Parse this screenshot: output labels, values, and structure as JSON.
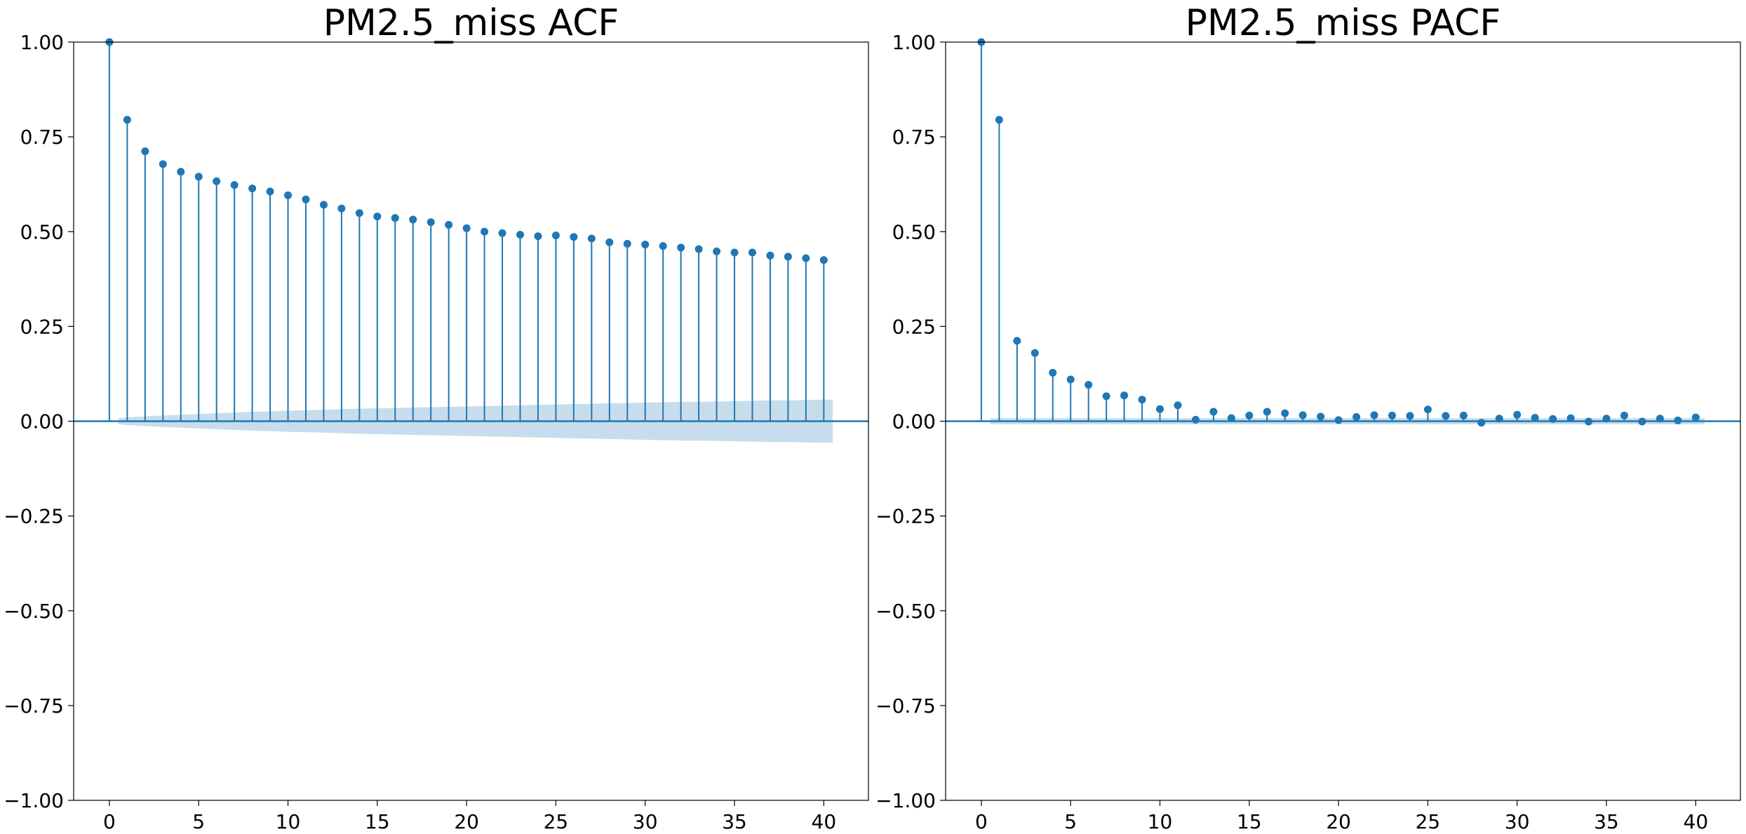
{
  "colors": {
    "stem": "#1f77b4",
    "marker": "#1f77b4",
    "baseline": "#1f77b4",
    "confidence_band": "#1f77b4",
    "frame": "#000000"
  },
  "chart_data": [
    {
      "type": "stem",
      "title": "PM2.5_miss ACF",
      "xlabel": "",
      "ylabel": "",
      "xlim": [
        -2,
        42.5
      ],
      "ylim": [
        -1.0,
        1.0
      ],
      "xticks": [
        0,
        5,
        10,
        15,
        20,
        25,
        30,
        35,
        40
      ],
      "xtick_labels": [
        "0",
        "5",
        "10",
        "15",
        "20",
        "25",
        "30",
        "35",
        "40"
      ],
      "yticks": [
        -1.0,
        -0.75,
        -0.5,
        -0.25,
        0.0,
        0.25,
        0.5,
        0.75,
        1.0
      ],
      "ytick_labels": [
        "−1.00",
        "−0.75",
        "−0.50",
        "−0.25",
        "0.00",
        "0.25",
        "0.50",
        "0.75",
        "1.00"
      ],
      "grid": false,
      "lags": [
        0,
        1,
        2,
        3,
        4,
        5,
        6,
        7,
        8,
        9,
        10,
        11,
        12,
        13,
        14,
        15,
        16,
        17,
        18,
        19,
        20,
        21,
        22,
        23,
        24,
        25,
        26,
        27,
        28,
        29,
        30,
        31,
        32,
        33,
        34,
        35,
        36,
        37,
        38,
        39,
        40
      ],
      "values": [
        1.0,
        0.795,
        0.712,
        0.678,
        0.658,
        0.645,
        0.633,
        0.623,
        0.614,
        0.606,
        0.596,
        0.585,
        0.571,
        0.561,
        0.549,
        0.54,
        0.536,
        0.532,
        0.525,
        0.518,
        0.509,
        0.5,
        0.496,
        0.492,
        0.488,
        0.49,
        0.486,
        0.482,
        0.472,
        0.468,
        0.466,
        0.462,
        0.458,
        0.454,
        0.448,
        0.445,
        0.445,
        0.437,
        0.434,
        0.43,
        0.425
      ],
      "confidence_band": {
        "lags": [
          0.5,
          1,
          2,
          3,
          4,
          5,
          6,
          7,
          8,
          9,
          10,
          11,
          12,
          13,
          14,
          15,
          16,
          17,
          18,
          19,
          20,
          21,
          22,
          23,
          24,
          25,
          26,
          27,
          28,
          29,
          30,
          31,
          32,
          33,
          34,
          35,
          36,
          37,
          38,
          39,
          40,
          40.5
        ],
        "upper": [
          0.008,
          0.01,
          0.013,
          0.015,
          0.017,
          0.019,
          0.021,
          0.023,
          0.025,
          0.026,
          0.028,
          0.029,
          0.03,
          0.032,
          0.033,
          0.034,
          0.035,
          0.036,
          0.037,
          0.038,
          0.039,
          0.04,
          0.041,
          0.042,
          0.043,
          0.044,
          0.045,
          0.046,
          0.047,
          0.048,
          0.049,
          0.05,
          0.051,
          0.051,
          0.052,
          0.053,
          0.054,
          0.055,
          0.055,
          0.056,
          0.057,
          0.057
        ]
      }
    },
    {
      "type": "stem",
      "title": "PM2.5_miss PACF",
      "xlabel": "",
      "ylabel": "",
      "xlim": [
        -2,
        42.5
      ],
      "ylim": [
        -1.0,
        1.0
      ],
      "xticks": [
        0,
        5,
        10,
        15,
        20,
        25,
        30,
        35,
        40
      ],
      "xtick_labels": [
        "0",
        "5",
        "10",
        "15",
        "20",
        "25",
        "30",
        "35",
        "40"
      ],
      "yticks": [
        -1.0,
        -0.75,
        -0.5,
        -0.25,
        0.0,
        0.25,
        0.5,
        0.75,
        1.0
      ],
      "ytick_labels": [
        "−1.00",
        "−0.75",
        "−0.50",
        "−0.25",
        "0.00",
        "0.25",
        "0.50",
        "0.75",
        "1.00"
      ],
      "grid": false,
      "lags": [
        0,
        1,
        2,
        3,
        4,
        5,
        6,
        7,
        8,
        9,
        10,
        11,
        12,
        13,
        14,
        15,
        16,
        17,
        18,
        19,
        20,
        21,
        22,
        23,
        24,
        25,
        26,
        27,
        28,
        29,
        30,
        31,
        32,
        33,
        34,
        35,
        36,
        37,
        38,
        39,
        40
      ],
      "values": [
        1.0,
        0.795,
        0.212,
        0.18,
        0.128,
        0.11,
        0.096,
        0.066,
        0.068,
        0.057,
        0.032,
        0.042,
        0.004,
        0.025,
        0.008,
        0.015,
        0.025,
        0.021,
        0.016,
        0.012,
        0.003,
        0.011,
        0.016,
        0.015,
        0.014,
        0.031,
        0.014,
        0.015,
        -0.004,
        0.007,
        0.017,
        0.009,
        0.006,
        0.008,
        -0.001,
        0.007,
        0.015,
        -0.001,
        0.007,
        0.002,
        0.01
      ],
      "confidence_band": {
        "lags": [
          0.5,
          40.5
        ],
        "upper": [
          0.008,
          0.008
        ]
      }
    }
  ]
}
